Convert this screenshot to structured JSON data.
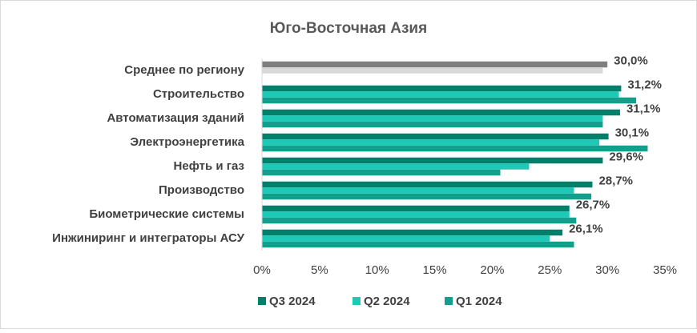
{
  "chart_data": {
    "type": "hbar",
    "title": "Юго-Восточная Азия",
    "categories": [
      "Среднее по региону",
      "Строительство",
      "Автоматизация зданий",
      "Электроэнергетика",
      "Нефть и газ",
      "Производство",
      "Биометрические системы",
      "Инжиниринг и интеграторы АСУ"
    ],
    "series": [
      {
        "name": "Q3 2024",
        "color": "#00806a",
        "colors": [
          "#7f7f7f",
          "#00806a",
          "#00806a",
          "#00806a",
          "#00806a",
          "#00806a",
          "#00806a",
          "#00806a"
        ],
        "values": [
          30.0,
          31.2,
          31.1,
          30.1,
          29.6,
          28.7,
          26.7,
          26.1
        ],
        "value_labels": [
          "30,0%",
          "31,2%",
          "31,1%",
          "30,1%",
          "29,6%",
          "28,7%",
          "26,7%",
          "26,1%"
        ]
      },
      {
        "name": "Q2 2024",
        "color": "#1fc9b8",
        "colors": [
          "#d9d9d9",
          "#1fc9b8",
          "#1fc9b8",
          "#1fc9b8",
          "#1fc9b8",
          "#1fc9b8",
          "#1fc9b8",
          "#1fc9b8"
        ],
        "values": [
          29.6,
          31.0,
          29.6,
          29.3,
          23.2,
          27.1,
          26.7,
          25.0
        ]
      },
      {
        "name": "Q1 2024",
        "color": "#12a08c",
        "colors": [
          "#ffffff",
          "#12a08c",
          "#12a08c",
          "#12a08c",
          "#12a08c",
          "#12a08c",
          "#12a08c",
          "#12a08c"
        ],
        "values": [
          null,
          32.5,
          29.6,
          33.5,
          20.7,
          28.6,
          27.3,
          27.1
        ]
      }
    ],
    "xlim": [
      0,
      35
    ],
    "xticks": [
      {
        "value": 0,
        "label": "0%"
      },
      {
        "value": 5,
        "label": "5%"
      },
      {
        "value": 10,
        "label": "10%"
      },
      {
        "value": 15,
        "label": "15%"
      },
      {
        "value": 20,
        "label": "20%"
      },
      {
        "value": 25,
        "label": "25%"
      },
      {
        "value": 30,
        "label": "30%"
      },
      {
        "value": 35,
        "label": "35%"
      }
    ],
    "grid": false,
    "legend": "bottom"
  }
}
